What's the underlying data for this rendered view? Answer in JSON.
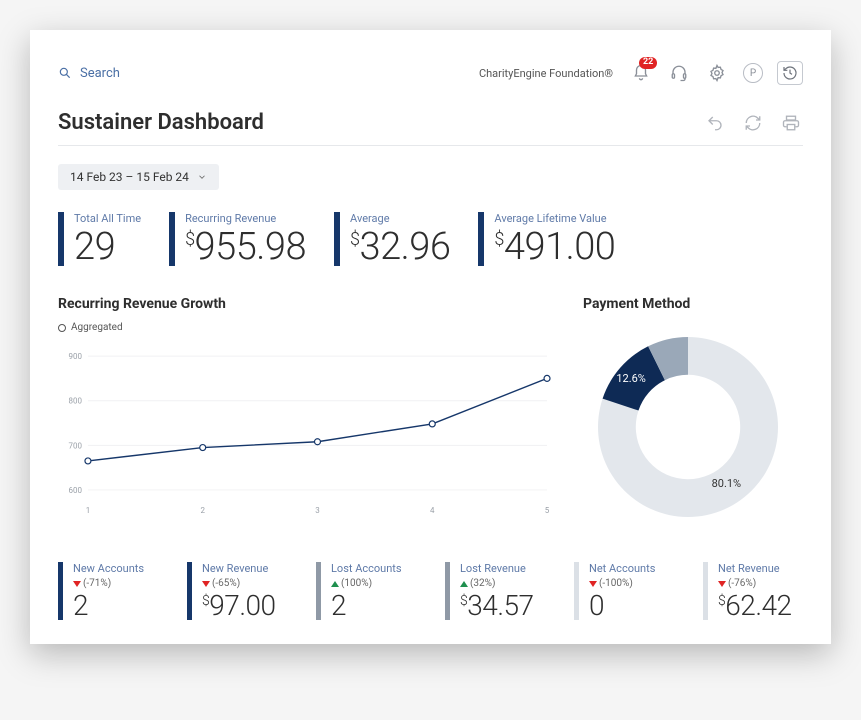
{
  "colors": {
    "navy": "#16376a",
    "navy_dark": "#0e2a55",
    "gray_dark": "#8f99a6",
    "gray_light": "#dbe0e6",
    "donut_gray": "#e3e7ec",
    "donut_mid": "#9aa8b8",
    "red": "#e02424",
    "green": "#1f8f4e",
    "link_blue": "#5f7aa8",
    "text": "#2e2e2e",
    "grid": "#e6e8eb"
  },
  "search": {
    "placeholder": "Search"
  },
  "brand": "CharityEngine Foundation®",
  "notifications": {
    "count": "22"
  },
  "p_label": "P",
  "title": "Sustainer Dashboard",
  "date_range": "14 Feb 23 – 15 Feb 24",
  "top_kpis": [
    {
      "label": "Total All Time",
      "value_prefix": "",
      "value": "29",
      "bar_color": "#16376a"
    },
    {
      "label": "Recurring Revenue",
      "value_prefix": "$",
      "value": "955.98",
      "bar_color": "#16376a"
    },
    {
      "label": "Average",
      "value_prefix": "$",
      "value": "32.96",
      "bar_color": "#16376a"
    },
    {
      "label": "Average Lifetime Value",
      "value_prefix": "$",
      "value": "491.00",
      "bar_color": "#16376a"
    }
  ],
  "line_chart": {
    "title": "Recurring Revenue Growth",
    "legend": "Aggregated",
    "xlabels": [
      "1",
      "2",
      "3",
      "4",
      "5"
    ],
    "yticks": [
      600,
      700,
      800,
      900
    ],
    "ylim": [
      580,
      920
    ],
    "points": [
      665,
      695,
      708,
      748,
      850
    ],
    "line_color": "#16376a",
    "grid_color": "#f0f1f3",
    "axis_label_color": "#9aa0a8",
    "axis_fontsize": 8
  },
  "donut": {
    "title": "Payment Method",
    "slices": [
      {
        "label": "80.1%",
        "pct": 80.1,
        "color": "#e3e7ec"
      },
      {
        "label": "12.6%",
        "pct": 12.6,
        "color": "#0e2a55"
      },
      {
        "pct": 7.3,
        "color": "#9aa8b8"
      }
    ],
    "label_fontsize": 11,
    "label_color_dark": "#333",
    "label_color_light": "#fff",
    "inner_ratio": 0.58
  },
  "bottom_kpis": [
    {
      "label": "New Accounts",
      "delta_dir": "down",
      "delta": "(-71%)",
      "value_prefix": "",
      "value": "2",
      "bar_color": "#16376a"
    },
    {
      "label": "New Revenue",
      "delta_dir": "down",
      "delta": "(-65%)",
      "value_prefix": "$",
      "value": "97.00",
      "bar_color": "#16376a"
    },
    {
      "label": "Lost Accounts",
      "delta_dir": "up",
      "delta": "(100%)",
      "value_prefix": "",
      "value": "2",
      "bar_color": "#8f99a6"
    },
    {
      "label": "Lost Revenue",
      "delta_dir": "up",
      "delta": "(32%)",
      "value_prefix": "$",
      "value": "34.57",
      "bar_color": "#8f99a6"
    },
    {
      "label": "Net Accounts",
      "delta_dir": "down",
      "delta": "(-100%)",
      "value_prefix": "",
      "value": "0",
      "bar_color": "#dbe0e6"
    },
    {
      "label": "Net Revenue",
      "delta_dir": "down",
      "delta": "(-76%)",
      "value_prefix": "$",
      "value": "62.42",
      "bar_color": "#dbe0e6"
    }
  ]
}
